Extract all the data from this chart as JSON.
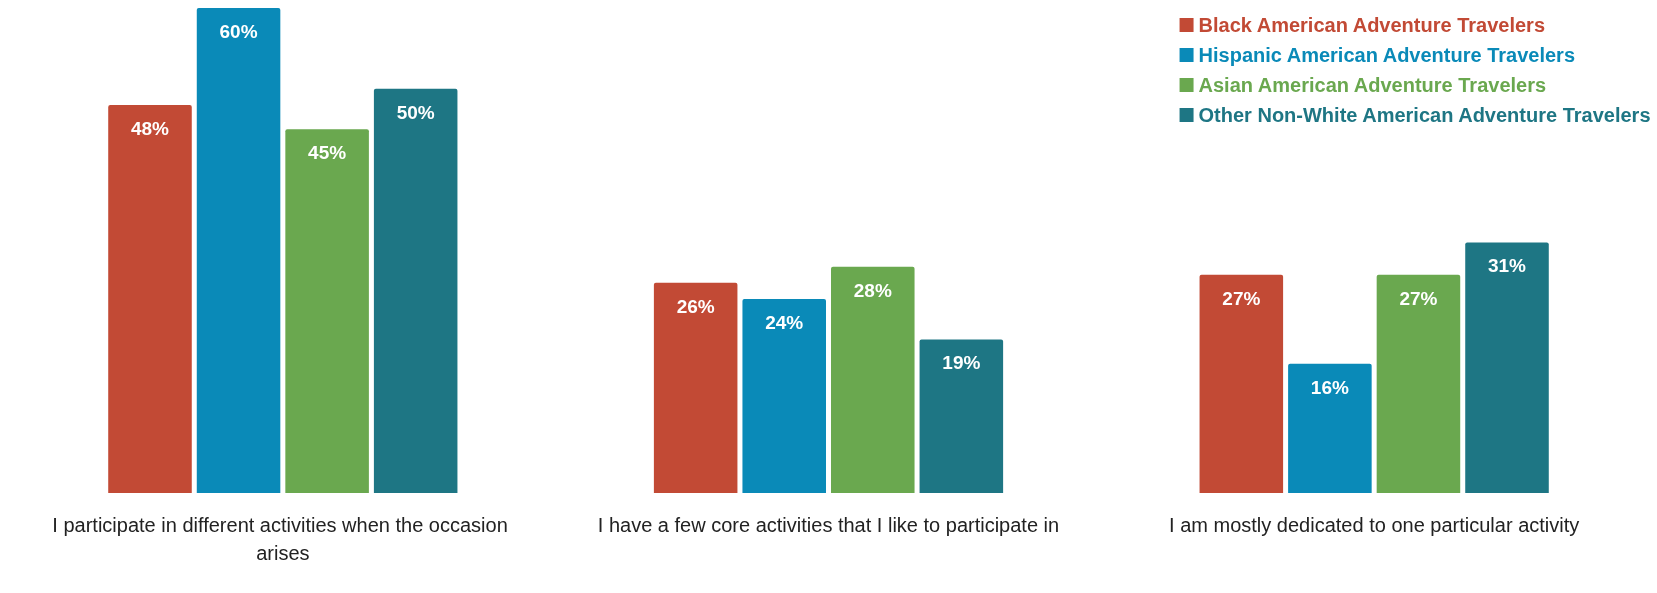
{
  "chart_data": {
    "type": "bar",
    "categories": [
      "I participate in different activities when the occasion arises",
      "I have a few core activities that I like to participate in",
      "I am mostly dedicated to one particular activity"
    ],
    "series": [
      {
        "name": "Black American Adventure Travelers",
        "color": "#c24a35",
        "values": [
          48,
          26,
          27
        ],
        "value_labels": [
          "48%",
          "26%",
          "27%"
        ]
      },
      {
        "name": "Hispanic American Adventure Travelers",
        "color": "#0a8ab8",
        "values": [
          60,
          24,
          16
        ],
        "value_labels": [
          "60%",
          "24%",
          "16%"
        ]
      },
      {
        "name": "Asian American Adventure Travelers",
        "color": "#6aa84f",
        "values": [
          45,
          28,
          27
        ],
        "value_labels": [
          "45%",
          "28%",
          "27%"
        ]
      },
      {
        "name": "Other Non-White American Adventure Travelers",
        "color": "#1e7684",
        "values": [
          50,
          19,
          31
        ],
        "value_labels": [
          "50%",
          "19%",
          "31%"
        ]
      }
    ],
    "legend": "top right",
    "grid": false
  }
}
